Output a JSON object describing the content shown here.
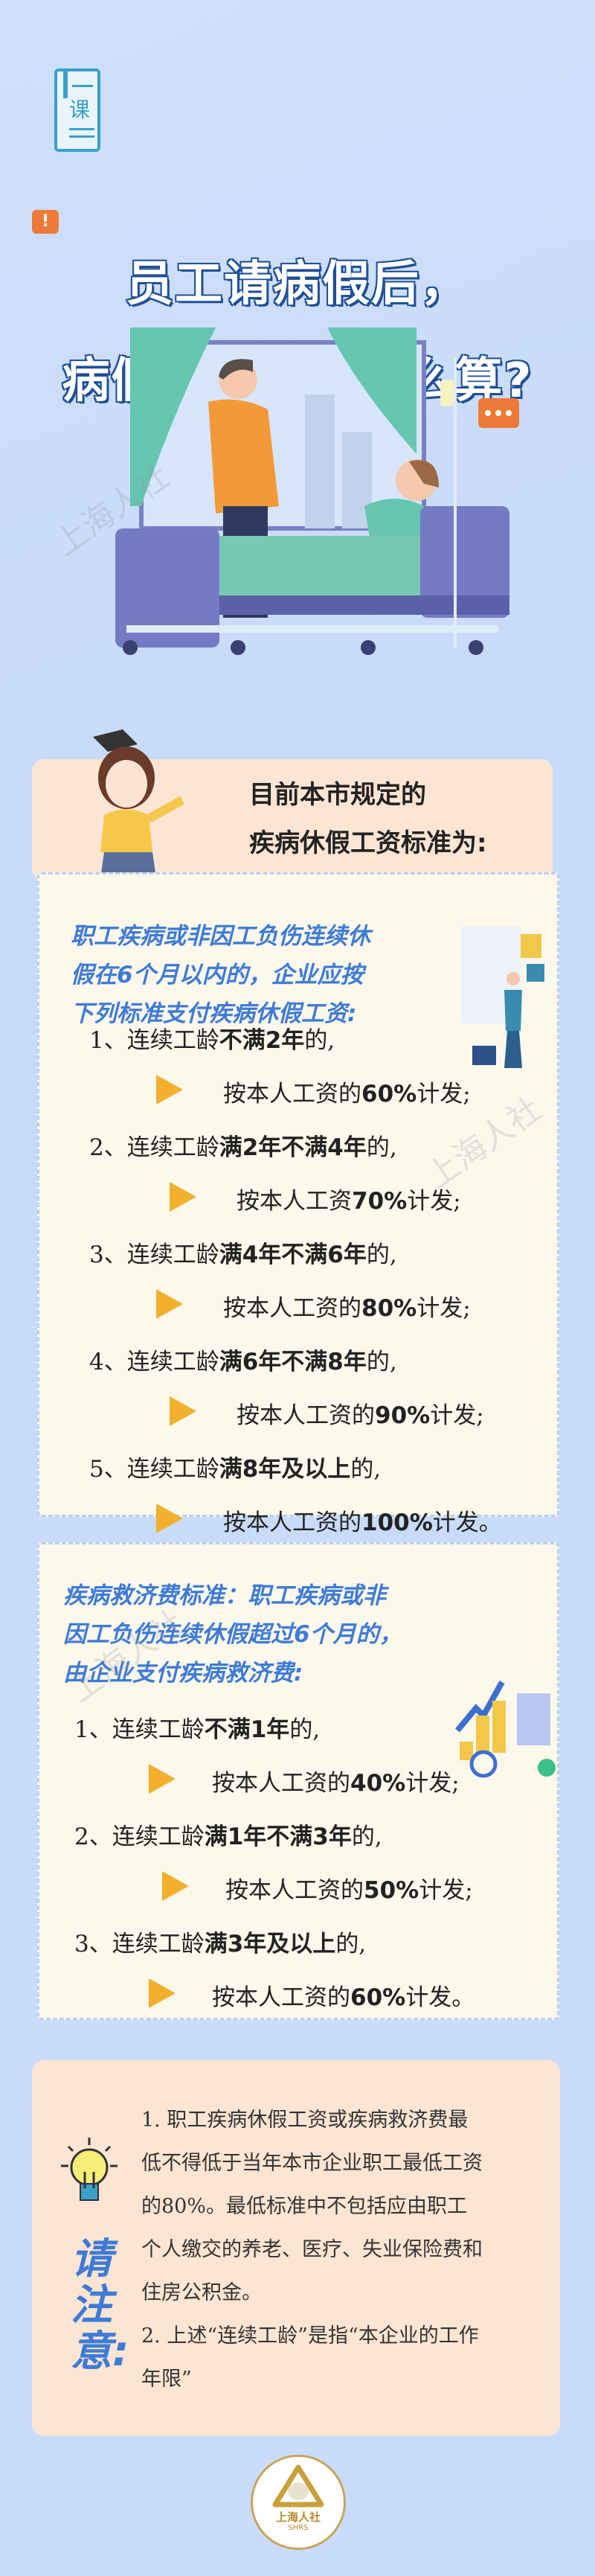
{
  "header": {
    "course_icon_text": "课",
    "alert_icon": "exclamation-bubble-icon"
  },
  "title": {
    "line1": "员工请病假后，",
    "line2": "病假工资具体怎么算?"
  },
  "watermark": "上海人社",
  "intro": {
    "line1": "目前本市规定的",
    "line2": "疾病休假工资标准为:"
  },
  "section1": {
    "header": [
      "职工疾病或非因工负伤连续休",
      "假在6个月以内的，企业应按",
      "下列标准支付疾病休假工资:"
    ],
    "items": [
      {
        "prefix": "1、连续工龄",
        "bold": "不满2年",
        "suffix": "的,",
        "pay_prefix": "按本人工资的",
        "pay_bold": "60%",
        "pay_suffix": "计发;"
      },
      {
        "prefix": "2、连续工龄",
        "bold": "满2年不满4年",
        "suffix": "的,",
        "pay_prefix": "按本人工资",
        "pay_bold": "70%",
        "pay_suffix": "计发;"
      },
      {
        "prefix": "3、连续工龄",
        "bold": "满4年不满6年",
        "suffix": "的,",
        "pay_prefix": "按本人工资的",
        "pay_bold": "80%",
        "pay_suffix": "计发;"
      },
      {
        "prefix": "4、连续工龄",
        "bold": "满6年不满8年",
        "suffix": "的,",
        "pay_prefix": "按本人工资的",
        "pay_bold": "90%",
        "pay_suffix": "计发;"
      },
      {
        "prefix": "5、连续工龄",
        "bold": "满8年及以上",
        "suffix": "的,",
        "pay_prefix": "按本人工资的",
        "pay_bold": "100%",
        "pay_suffix": "计发。"
      }
    ]
  },
  "section2": {
    "header": [
      "疾病救济费标准：职工疾病或非",
      "因工负伤连续休假超过6个月的，",
      "由企业支付疾病救济费:"
    ],
    "items": [
      {
        "prefix": "1、连续工龄",
        "bold": "不满1年",
        "suffix": "的,",
        "pay_prefix": "按本人工资的",
        "pay_bold": "40%",
        "pay_suffix": "计发;"
      },
      {
        "prefix": "2、连续工龄",
        "bold": "满1年不满3年",
        "suffix": "的,",
        "pay_prefix": "按本人工资的",
        "pay_bold": "50%",
        "pay_suffix": "计发;"
      },
      {
        "prefix": "3、连续工龄",
        "bold": "满3年及以上",
        "suffix": "的,",
        "pay_prefix": "按本人工资的",
        "pay_bold": "60%",
        "pay_suffix": "计发。"
      }
    ]
  },
  "notice": {
    "label": [
      "请",
      "注",
      "意",
      ":"
    ],
    "paragraphs": [
      "1. 职工疾病休假工资或疾病救济费最低不得低于当年本市企业职工最低工资的80%。最低标准中不包括应由职工个人缴交的养老、医疗、失业保险费和住房公积金。",
      "2. 上述“连续工龄”是指“本企业的工作年限”"
    ]
  },
  "logo": {
    "name": "上海人社",
    "abbr": "SHRS"
  },
  "colors": {
    "background": "#cadcfc",
    "accent_blue": "#3e7bd6",
    "title_stroke": "#1f4f96",
    "arrow": "#f2b02c",
    "pink_box": "#fde5d3",
    "card": "#fdf8ec",
    "alert_orange": "#ee7a38"
  }
}
